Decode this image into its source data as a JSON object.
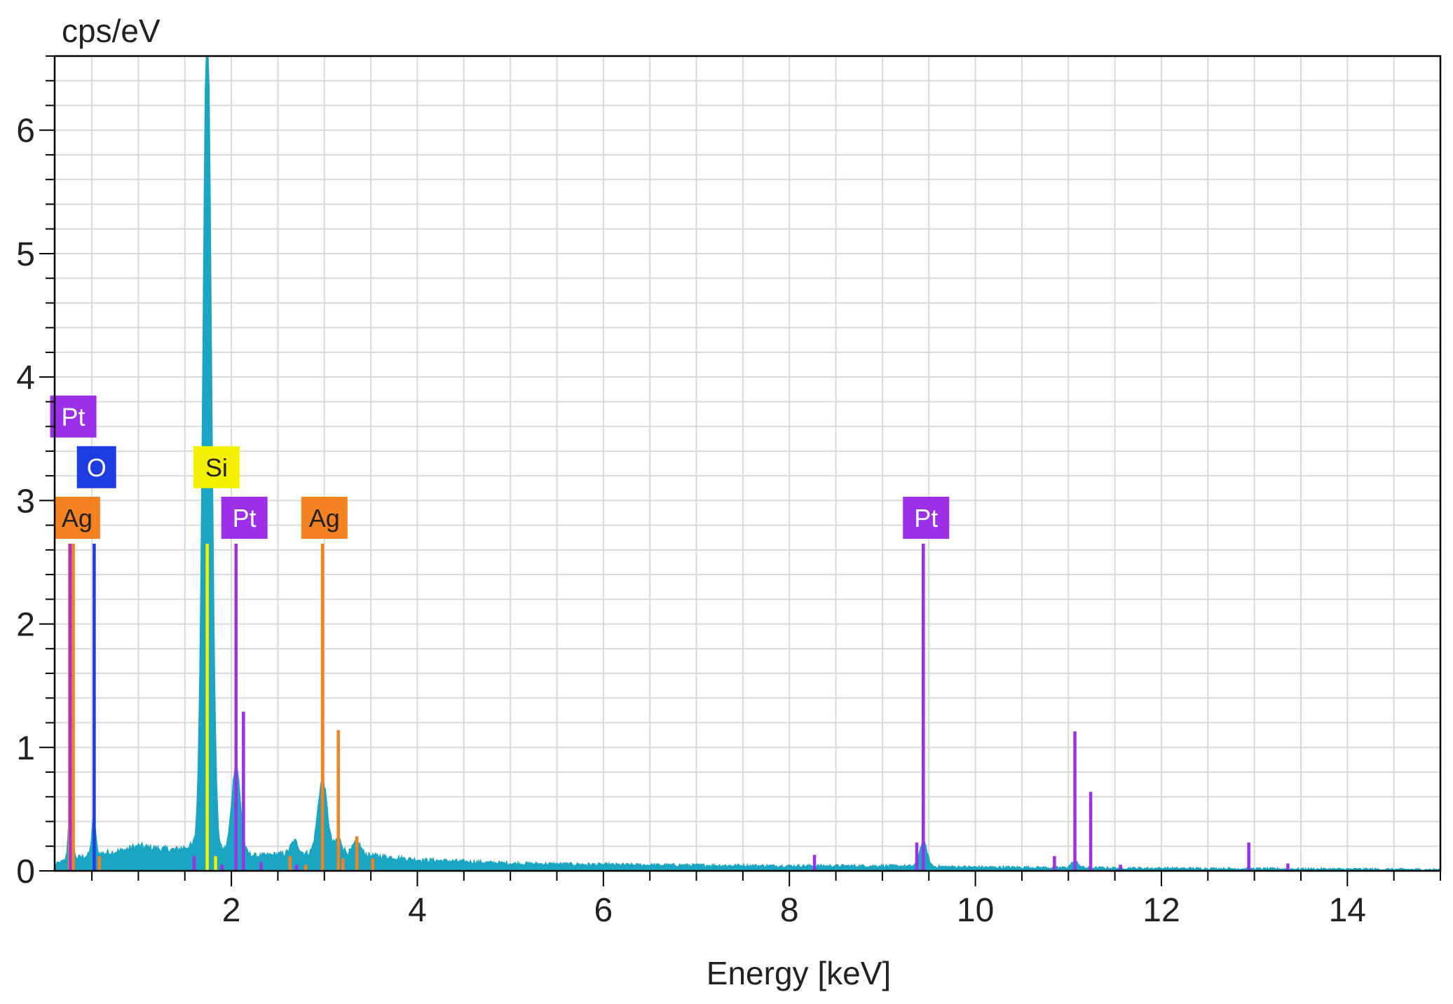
{
  "chart_data": {
    "type": "line",
    "title": "",
    "xlabel": "Energy [keV]",
    "ylabel": "cps/eV",
    "xlim": [
      0.1,
      15.0
    ],
    "ylim": [
      0,
      6.6
    ],
    "x_ticks": [
      {
        "value": 2,
        "label": "2"
      },
      {
        "value": 4,
        "label": "4"
      },
      {
        "value": 6,
        "label": "6"
      },
      {
        "value": 8,
        "label": "8"
      },
      {
        "value": 10,
        "label": "10"
      },
      {
        "value": 12,
        "label": "12"
      },
      {
        "value": 14,
        "label": "14"
      }
    ],
    "y_ticks": [
      {
        "value": 0,
        "label": "0"
      },
      {
        "value": 1,
        "label": "1"
      },
      {
        "value": 2,
        "label": "2"
      },
      {
        "value": 3,
        "label": "3"
      },
      {
        "value": 4,
        "label": "4"
      },
      {
        "value": 5,
        "label": "5"
      },
      {
        "value": 6,
        "label": "6"
      }
    ],
    "x_minor_step": 0.5,
    "y_minor_step": 0.2,
    "grid": true,
    "colors": {
      "spectrum": "#1aa6c2",
      "Ag": "#f58220",
      "Pt": "#9b30e8",
      "O": "#1f3ce0",
      "Si": "#f5f000",
      "grid": "#dadada",
      "axis": "#000000"
    },
    "spectrum": {
      "background": [
        [
          0.1,
          0.05
        ],
        [
          0.2,
          0.08
        ],
        [
          0.3,
          0.1
        ],
        [
          0.5,
          0.13
        ],
        [
          0.8,
          0.16
        ],
        [
          1.0,
          0.2
        ],
        [
          1.2,
          0.18
        ],
        [
          1.4,
          0.17
        ],
        [
          1.55,
          0.2
        ],
        [
          2.3,
          0.12
        ],
        [
          2.6,
          0.14
        ],
        [
          3.3,
          0.14
        ],
        [
          4.0,
          0.09
        ],
        [
          5.0,
          0.06
        ],
        [
          6.0,
          0.05
        ],
        [
          8.0,
          0.04
        ],
        [
          9.0,
          0.04
        ],
        [
          10.0,
          0.03
        ],
        [
          12.0,
          0.02
        ],
        [
          13.5,
          0.015
        ],
        [
          15.0,
          0.01
        ]
      ],
      "peaks": [
        {
          "center": 0.27,
          "height": 0.5,
          "width": 0.02
        },
        {
          "center": 0.52,
          "height": 0.3,
          "width": 0.02
        },
        {
          "center": 1.74,
          "height": 6.8,
          "width": 0.045
        },
        {
          "center": 2.05,
          "height": 0.72,
          "width": 0.045
        },
        {
          "center": 2.68,
          "height": 0.1,
          "width": 0.04
        },
        {
          "center": 2.98,
          "height": 0.6,
          "width": 0.05
        },
        {
          "center": 3.15,
          "height": 0.12,
          "width": 0.04
        },
        {
          "center": 3.35,
          "height": 0.1,
          "width": 0.04
        },
        {
          "center": 9.44,
          "height": 0.2,
          "width": 0.04
        },
        {
          "center": 11.07,
          "height": 0.05,
          "width": 0.04
        }
      ],
      "noise": 0.04,
      "step": 0.01
    },
    "element_lines": [
      {
        "element": "Ag",
        "energy": 0.26,
        "height": 2.65
      },
      {
        "element": "Pt",
        "energy": 0.27,
        "height": 2.65
      },
      {
        "element": "Ag",
        "energy": 0.3,
        "height": 2.65
      },
      {
        "element": "O",
        "energy": 0.525,
        "height": 2.65
      },
      {
        "element": "Ag",
        "energy": 0.58,
        "height": 0.12
      },
      {
        "element": "Pt",
        "energy": 1.6,
        "height": 0.12
      },
      {
        "element": "Si",
        "energy": 1.74,
        "height": 2.65
      },
      {
        "element": "Si",
        "energy": 1.83,
        "height": 0.12
      },
      {
        "element": "Pt",
        "energy": 1.9,
        "height": 0.05
      },
      {
        "element": "Pt",
        "energy": 2.05,
        "height": 2.65
      },
      {
        "element": "Pt",
        "energy": 2.13,
        "height": 1.29
      },
      {
        "element": "Pt",
        "energy": 2.32,
        "height": 0.07
      },
      {
        "element": "Ag",
        "energy": 2.63,
        "height": 0.12
      },
      {
        "element": "Pt",
        "energy": 2.7,
        "height": 0.05
      },
      {
        "element": "Ag",
        "energy": 2.8,
        "height": 0.05
      },
      {
        "element": "Ag",
        "energy": 2.98,
        "height": 2.65
      },
      {
        "element": "Ag",
        "energy": 3.15,
        "height": 1.14
      },
      {
        "element": "Ag",
        "energy": 3.2,
        "height": 0.1
      },
      {
        "element": "Ag",
        "energy": 3.35,
        "height": 0.28
      },
      {
        "element": "Ag",
        "energy": 3.52,
        "height": 0.1
      },
      {
        "element": "Pt",
        "energy": 8.27,
        "height": 0.13
      },
      {
        "element": "Pt",
        "energy": 9.37,
        "height": 0.23
      },
      {
        "element": "Pt",
        "energy": 9.44,
        "height": 2.65
      },
      {
        "element": "Pt",
        "energy": 10.85,
        "height": 0.12
      },
      {
        "element": "Pt",
        "energy": 11.07,
        "height": 1.13
      },
      {
        "element": "Pt",
        "energy": 11.24,
        "height": 0.64
      },
      {
        "element": "Pt",
        "energy": 11.56,
        "height": 0.05
      },
      {
        "element": "Pt",
        "energy": 12.94,
        "height": 0.23
      },
      {
        "element": "Pt",
        "energy": 13.36,
        "height": 0.06
      }
    ],
    "labels": [
      {
        "text": "Pt",
        "element": "Pt",
        "energy": 0.3,
        "level": 3.68
      },
      {
        "text": "O",
        "element": "O",
        "energy": 0.55,
        "level": 3.27
      },
      {
        "text": "Ag",
        "element": "Ag",
        "energy": 0.34,
        "level": 2.86
      },
      {
        "text": "Si",
        "element": "Si",
        "energy": 1.84,
        "level": 3.27
      },
      {
        "text": "Pt",
        "element": "Pt",
        "energy": 2.14,
        "level": 2.86
      },
      {
        "text": "Ag",
        "element": "Ag",
        "energy": 3.0,
        "level": 2.86
      },
      {
        "text": "Pt",
        "element": "Pt",
        "energy": 9.47,
        "level": 2.86
      }
    ]
  }
}
